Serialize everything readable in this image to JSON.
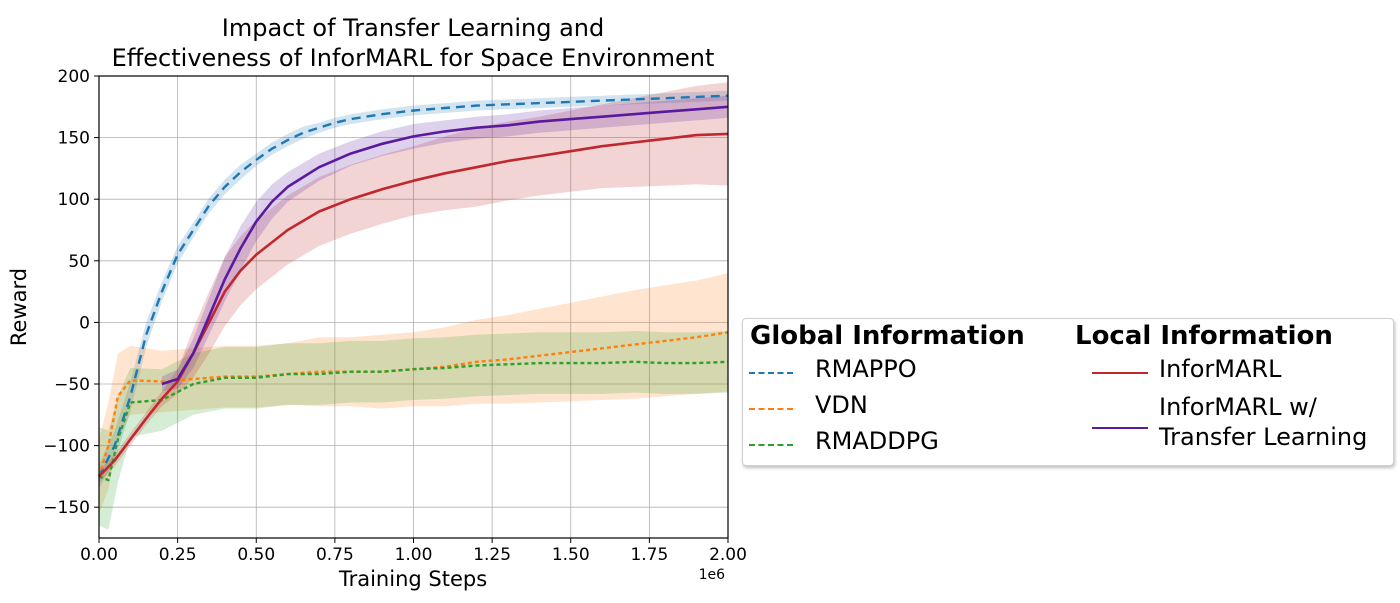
{
  "chart_data": {
    "type": "line",
    "title_line1": "Impact of Transfer Learning and",
    "title_line2": "Effectiveness of InforMARL for Space Environment",
    "xlabel": "Training Steps",
    "ylabel": "Reward",
    "x_offset_label": "1e6",
    "xlim": [
      0,
      2.0
    ],
    "ylim": [
      -175,
      200
    ],
    "xticks": [
      0.0,
      0.25,
      0.5,
      0.75,
      1.0,
      1.25,
      1.5,
      1.75,
      2.0
    ],
    "xtick_labels": [
      "0.00",
      "0.25",
      "0.50",
      "0.75",
      "1.00",
      "1.25",
      "1.50",
      "1.75",
      "2.00"
    ],
    "yticks": [
      -150,
      -100,
      -50,
      0,
      50,
      100,
      150,
      200
    ],
    "ytick_labels": [
      "−150",
      "−100",
      "−50",
      "0",
      "50",
      "100",
      "150",
      "200"
    ],
    "grid": true,
    "legend_placement": "right, outside",
    "legend_groups": [
      {
        "title": "Global Information",
        "entries": [
          "RMAPPO",
          "VDN",
          "RMADDPG"
        ]
      },
      {
        "title": "Local Information",
        "entries": [
          "InforMARL",
          "InforMARL w/",
          "Transfer Learning"
        ]
      }
    ],
    "series": [
      {
        "name": "RMAPPO",
        "color": "#1f77b4",
        "style": "dashed",
        "x": [
          0.0,
          0.05,
          0.1,
          0.15,
          0.2,
          0.25,
          0.3,
          0.35,
          0.4,
          0.45,
          0.5,
          0.55,
          0.6,
          0.65,
          0.7,
          0.75,
          0.8,
          0.9,
          1.0,
          1.1,
          1.2,
          1.3,
          1.4,
          1.5,
          1.6,
          1.7,
          1.8,
          1.9,
          2.0
        ],
        "y": [
          -125,
          -100,
          -60,
          -10,
          25,
          55,
          75,
          95,
          110,
          122,
          132,
          141,
          148,
          154,
          158,
          162,
          165,
          169,
          172,
          174,
          176,
          177,
          178,
          179,
          180,
          181,
          182,
          183,
          184
        ],
        "band": [
          10,
          12,
          12,
          10,
          8,
          7,
          6,
          6,
          6,
          6,
          5,
          5,
          5,
          5,
          4,
          4,
          4,
          4,
          4,
          4,
          4,
          4,
          4,
          4,
          4,
          4,
          4,
          4,
          4
        ]
      },
      {
        "name": "VDN",
        "color": "#ff7f0e",
        "style": "dotted",
        "x": [
          0.0,
          0.03,
          0.06,
          0.1,
          0.2,
          0.3,
          0.4,
          0.5,
          0.6,
          0.7,
          0.8,
          0.9,
          1.0,
          1.1,
          1.2,
          1.3,
          1.4,
          1.5,
          1.6,
          1.7,
          1.8,
          1.9,
          2.0
        ],
        "y": [
          -125,
          -100,
          -60,
          -47,
          -48,
          -46,
          -44,
          -44,
          -42,
          -40,
          -40,
          -40,
          -38,
          -36,
          -32,
          -30,
          -27,
          -24,
          -21,
          -18,
          -15,
          -12,
          -8
        ],
        "band": [
          30,
          35,
          35,
          28,
          25,
          25,
          25,
          25,
          25,
          28,
          28,
          30,
          30,
          32,
          34,
          36,
          38,
          40,
          42,
          44,
          45,
          46,
          48
        ]
      },
      {
        "name": "RMADDPG",
        "color": "#2ca02c",
        "style": "dotted",
        "x": [
          0.0,
          0.03,
          0.06,
          0.1,
          0.2,
          0.3,
          0.4,
          0.5,
          0.6,
          0.7,
          0.8,
          0.9,
          1.0,
          1.1,
          1.2,
          1.3,
          1.4,
          1.5,
          1.6,
          1.7,
          1.8,
          1.9,
          2.0
        ],
        "y": [
          -125,
          -128,
          -95,
          -65,
          -63,
          -50,
          -45,
          -45,
          -42,
          -42,
          -40,
          -40,
          -38,
          -37,
          -35,
          -34,
          -33,
          -33,
          -33,
          -32,
          -33,
          -33,
          -32
        ],
        "band": [
          40,
          40,
          35,
          28,
          25,
          25,
          25,
          25,
          25,
          25,
          25,
          25,
          25,
          25,
          25,
          25,
          25,
          25,
          25,
          25,
          25,
          25,
          25
        ]
      },
      {
        "name": "InforMARL",
        "color": "#c0282d",
        "style": "solid",
        "x": [
          0.0,
          0.05,
          0.1,
          0.15,
          0.2,
          0.25,
          0.3,
          0.35,
          0.4,
          0.45,
          0.5,
          0.6,
          0.7,
          0.8,
          0.9,
          1.0,
          1.1,
          1.2,
          1.3,
          1.4,
          1.5,
          1.6,
          1.7,
          1.8,
          1.9,
          2.0
        ],
        "y": [
          -125,
          -112,
          -95,
          -78,
          -62,
          -48,
          -25,
          0,
          25,
          42,
          55,
          75,
          90,
          100,
          108,
          115,
          121,
          126,
          131,
          135,
          139,
          143,
          146,
          149,
          152,
          153
        ],
        "band": [
          5,
          5,
          5,
          5,
          6,
          10,
          20,
          25,
          28,
          28,
          28,
          28,
          28,
          28,
          28,
          28,
          30,
          32,
          32,
          32,
          33,
          34,
          36,
          38,
          40,
          42
        ]
      },
      {
        "name": "InforMARL w/ Transfer Learning",
        "color": "#5a1a9e",
        "style": "solid",
        "x": [
          0.2,
          0.25,
          0.3,
          0.35,
          0.4,
          0.45,
          0.5,
          0.55,
          0.6,
          0.7,
          0.8,
          0.9,
          1.0,
          1.1,
          1.2,
          1.3,
          1.4,
          1.5,
          1.6,
          1.7,
          1.8,
          1.9,
          2.0
        ],
        "y": [
          -50,
          -46,
          -25,
          5,
          35,
          60,
          82,
          98,
          110,
          126,
          137,
          145,
          151,
          155,
          158,
          160,
          163,
          165,
          167,
          169,
          171,
          173,
          175
        ],
        "band": [
          6,
          8,
          12,
          15,
          18,
          18,
          16,
          14,
          12,
          11,
          10,
          10,
          10,
          9,
          9,
          9,
          9,
          9,
          9,
          9,
          9,
          9,
          9
        ]
      }
    ]
  }
}
